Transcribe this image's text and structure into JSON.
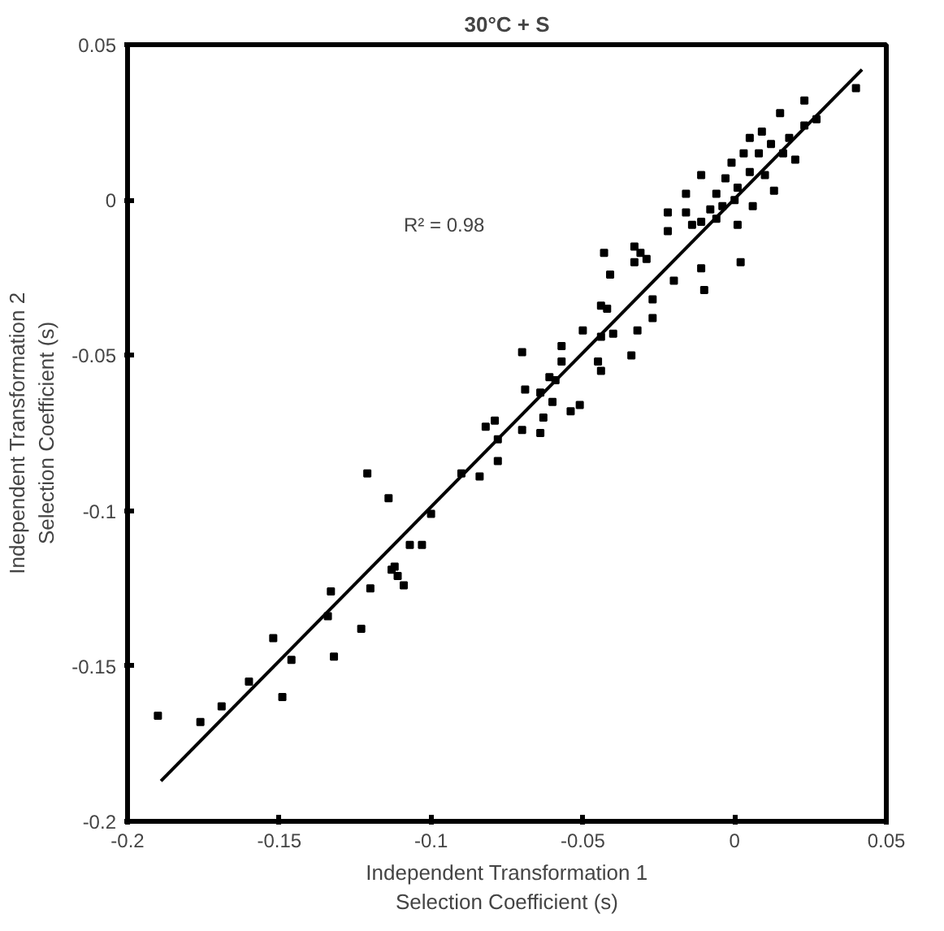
{
  "chart_data": {
    "type": "scatter",
    "title": "30°C + S",
    "xlabel": "Independent Transformation 1\nSelection Coefficient (s)",
    "ylabel": "Independent Transformation 2\nSelection Coefficient (s)",
    "annotations": [
      "R² = 0.98"
    ],
    "xlim": [
      -0.2,
      0.05
    ],
    "ylim": [
      -0.2,
      0.05
    ],
    "xticks": [
      -0.2,
      -0.15,
      -0.1,
      -0.05,
      0,
      0.05
    ],
    "yticks": [
      -0.2,
      -0.15,
      -0.1,
      -0.05,
      0,
      0.05
    ],
    "grid": false,
    "series": [
      {
        "marker": "square",
        "color": "#000000",
        "x": [
          -0.19,
          -0.176,
          -0.169,
          -0.16,
          -0.152,
          -0.149,
          -0.146,
          -0.133,
          -0.134,
          -0.132,
          -0.123,
          -0.12,
          -0.121,
          -0.114,
          -0.113,
          -0.109,
          -0.107,
          -0.103,
          -0.112,
          -0.111,
          -0.1,
          -0.09,
          -0.084,
          -0.078,
          -0.078,
          -0.082,
          -0.079,
          -0.07,
          -0.064,
          -0.063,
          -0.06,
          -0.054,
          -0.051,
          -0.069,
          -0.064,
          -0.061,
          -0.059,
          -0.07,
          -0.057,
          -0.057,
          -0.05,
          -0.044,
          -0.045,
          -0.044,
          -0.04,
          -0.034,
          -0.032,
          -0.044,
          -0.042,
          -0.041,
          -0.043,
          -0.033,
          -0.033,
          -0.031,
          -0.029,
          -0.027,
          -0.027,
          -0.022,
          -0.022,
          -0.02,
          -0.016,
          -0.011,
          -0.011,
          -0.01,
          -0.014,
          -0.011,
          -0.008,
          -0.006,
          -0.003,
          -0.004,
          -0.001,
          0.001,
          0.0,
          0.002,
          0.003,
          0.005,
          0.005,
          0.006,
          0.008,
          0.009,
          0.01,
          0.012,
          0.013,
          0.016,
          0.015,
          0.018,
          0.02,
          0.023,
          0.023,
          0.027,
          0.001,
          -0.006,
          -0.016,
          0.04
        ],
        "values": [
          -0.166,
          -0.168,
          -0.163,
          -0.155,
          -0.141,
          -0.16,
          -0.148,
          -0.126,
          -0.134,
          -0.147,
          -0.138,
          -0.125,
          -0.088,
          -0.096,
          -0.119,
          -0.124,
          -0.111,
          -0.111,
          -0.118,
          -0.121,
          -0.101,
          -0.088,
          -0.089,
          -0.084,
          -0.077,
          -0.073,
          -0.071,
          -0.074,
          -0.075,
          -0.07,
          -0.065,
          -0.068,
          -0.066,
          -0.061,
          -0.062,
          -0.057,
          -0.058,
          -0.049,
          -0.047,
          -0.052,
          -0.042,
          -0.044,
          -0.052,
          -0.055,
          -0.043,
          -0.05,
          -0.042,
          -0.034,
          -0.035,
          -0.024,
          -0.017,
          -0.015,
          -0.02,
          -0.017,
          -0.019,
          -0.032,
          -0.038,
          -0.004,
          -0.01,
          -0.026,
          0.002,
          0.008,
          -0.022,
          -0.029,
          -0.008,
          -0.007,
          -0.003,
          0.002,
          0.007,
          -0.002,
          0.012,
          0.004,
          0.0,
          -0.02,
          0.015,
          0.009,
          0.02,
          -0.002,
          0.015,
          0.022,
          0.008,
          0.018,
          0.003,
          0.015,
          0.028,
          0.02,
          0.013,
          0.024,
          0.032,
          0.026,
          -0.008,
          -0.006,
          -0.004,
          0.036
        ]
      },
      {
        "type": "line",
        "color": "#000000",
        "x": [
          -0.189,
          0.042
        ],
        "values": [
          -0.187,
          0.042
        ]
      }
    ]
  }
}
